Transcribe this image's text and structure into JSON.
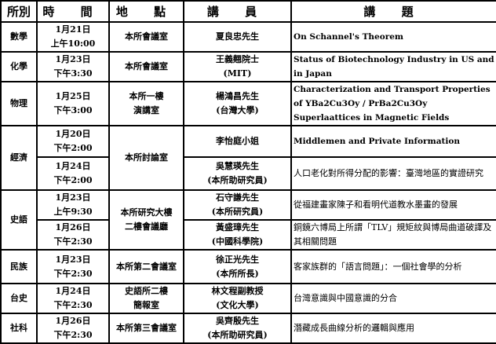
{
  "headers": [
    "所別",
    "時 間",
    "地 點",
    "講 員",
    "講 題"
  ],
  "rows": [
    {
      "dept": "數學",
      "date": "1月21日",
      "time": "上午10:00",
      "place": [
        "本所會議室"
      ],
      "speaker": "夏良忠先生",
      "affil": "",
      "topic": "On Schannel's Theorem"
    },
    {
      "dept": "化學",
      "date": "1月23日",
      "time": "下午3:30",
      "place": [
        "本所會議室"
      ],
      "speaker": "王義翹院士",
      "affil": "(MIT)",
      "topic": "Status of Biotechnology Industry in US and in Japan"
    },
    {
      "dept": "物理",
      "date": "1月25日",
      "time": "下午3:00",
      "place": [
        "本所一樓",
        "演講室"
      ],
      "speaker": "楊鴻昌先生",
      "affil": "(台灣大學)",
      "topic": "Characterization and Transport Properties of YBa2Cu3Oy / PrBa2Cu3Oy Superlaattices in Magnetic Fields"
    },
    {
      "dept": "經濟",
      "date": "1月20日",
      "time": "下午2:00",
      "place": [
        "本所討論室"
      ],
      "speaker": "李怡庭小姐",
      "affil": "",
      "topic": "Middlemen and Private Information"
    },
    {
      "date": "1月24日",
      "time": "下午2:00",
      "speaker": "吳慧瑛先生",
      "affil": "(本所助研究員)",
      "topic": "人口老化對所得分配的影響：臺灣地區的實證研究"
    },
    {
      "dept": "史語",
      "date": "1月23日",
      "time": "上午9:30",
      "place": [
        "本所研究大樓",
        "二樓會議廳"
      ],
      "speaker": "石守謙先生",
      "affil": "(本所研究員)",
      "topic": "從福建畫家陳子和看明代道教水墨畫的發展"
    },
    {
      "date": "1月26日",
      "time": "下午2:30",
      "speaker": "黃盛璋先生",
      "affil": "(中國科學院)",
      "topic": "銅鏡六博局上所謂「TLV」規矩紋與博局曲道破譯及其相關問題"
    },
    {
      "dept": "民族",
      "date": "1月23日",
      "time": "下午2:30",
      "place": [
        "本所第二會議室"
      ],
      "speaker": "徐正光先生",
      "affil": "(本所所長)",
      "topic": "客家族群的「語言問題」：一個社會學的分析"
    },
    {
      "dept": "台史",
      "date": "1月24日",
      "time": "下午2:30",
      "place": [
        "史語所二樓",
        "簡報室"
      ],
      "speaker": "林文程副教授",
      "affil": "(文化大學)",
      "topic": "台灣意識與中國意識的分合"
    },
    {
      "dept": "社科",
      "date": "1月26日",
      "time": "下午2:30",
      "place": [
        "本所第三會議室"
      ],
      "speaker": "吳齊殷先生",
      "affil": "(本所助研究員)",
      "topic": "潛藏成長曲線分析的邏輯與應用"
    }
  ]
}
